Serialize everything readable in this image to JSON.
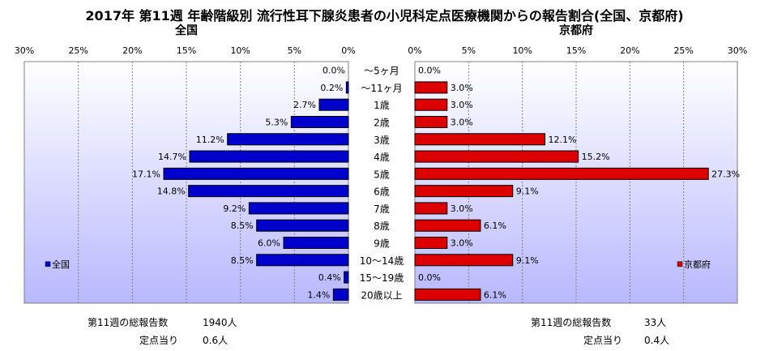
{
  "title": "2017年 第11週 年齢階級別 流行性耳下腺炎患者の小児科定点医療機関からの報告割合(全国、京都府)",
  "colors": {
    "plot_bg_top": "#ffffff",
    "plot_bg_bottom": "#b8b8ff",
    "national_bar": "#0000cc",
    "kyoto_bar": "#dd0000",
    "grid": "#7f7f7f"
  },
  "chart_data": [
    {
      "type": "bar",
      "orientation": "horizontal",
      "direction": "reversed",
      "title": "全国",
      "xlim": [
        0,
        30
      ],
      "ticks": [
        "30%",
        "25%",
        "20%",
        "15%",
        "10%",
        "5%",
        "0%"
      ],
      "tick_values": [
        30,
        25,
        20,
        15,
        10,
        5,
        0
      ],
      "legend": "全国",
      "legend_position": "bottom-left",
      "categories": [
        "～5ヶ月",
        "～11ヶ月",
        "1歳",
        "2歳",
        "3歳",
        "4歳",
        "5歳",
        "6歳",
        "7歳",
        "8歳",
        "9歳",
        "10～14歳",
        "15～19歳",
        "20歳以上"
      ],
      "values": [
        0.0,
        0.2,
        2.7,
        5.3,
        11.2,
        14.7,
        17.1,
        14.8,
        9.2,
        8.5,
        6.0,
        8.5,
        0.4,
        1.4
      ],
      "labels": [
        "0.0%",
        "0.2%",
        "2.7%",
        "5.3%",
        "11.2%",
        "14.7%",
        "17.1%",
        "14.8%",
        "9.2%",
        "8.5%",
        "6.0%",
        "8.5%",
        "0.4%",
        "1.4%"
      ]
    },
    {
      "type": "bar",
      "orientation": "horizontal",
      "title": "京都府",
      "xlim": [
        0,
        30
      ],
      "ticks": [
        "0%",
        "5%",
        "10%",
        "15%",
        "20%",
        "25%",
        "30%"
      ],
      "tick_values": [
        0,
        5,
        10,
        15,
        20,
        25,
        30
      ],
      "legend": "京都府",
      "legend_position": "bottom-right",
      "categories": [
        "～5ヶ月",
        "～11ヶ月",
        "1歳",
        "2歳",
        "3歳",
        "4歳",
        "5歳",
        "6歳",
        "7歳",
        "8歳",
        "9歳",
        "10～14歳",
        "15～19歳",
        "20歳以上"
      ],
      "values": [
        0.0,
        3.0,
        3.0,
        3.0,
        12.1,
        15.2,
        27.3,
        9.1,
        3.0,
        6.1,
        3.0,
        9.1,
        0.0,
        6.1
      ],
      "labels": [
        "0.0%",
        "3.0%",
        "3.0%",
        "3.0%",
        "12.1%",
        "15.2%",
        "27.3%",
        "9.1%",
        "3.0%",
        "6.1%",
        "3.0%",
        "9.1%",
        "0.0%",
        "6.1%"
      ]
    }
  ],
  "footer": {
    "national_total_label": "第11週の総報告数",
    "national_total_value": "1940人",
    "national_per_label": "定点当り",
    "national_per_value": "0.6人",
    "kyoto_total_label": "第11週の総報告数",
    "kyoto_total_value": "33人",
    "kyoto_per_label": "定点当り",
    "kyoto_per_value": "0.4人"
  }
}
